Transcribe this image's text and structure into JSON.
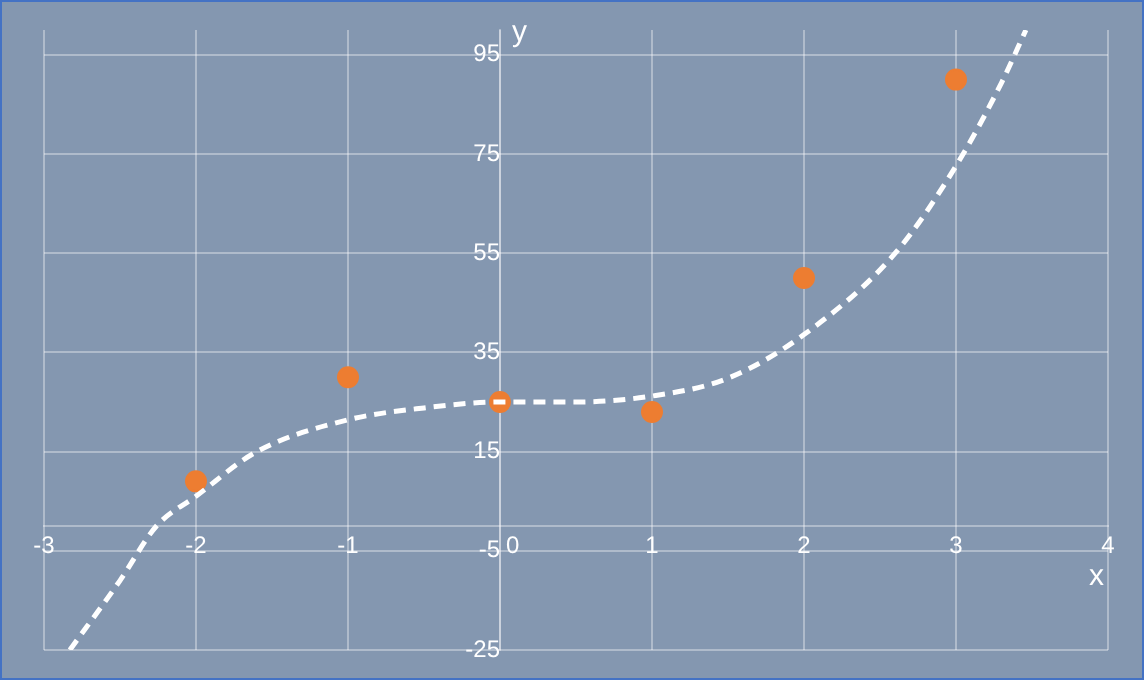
{
  "chart_data": {
    "type": "scatter",
    "xlabel": "x",
    "ylabel": "y",
    "xlim": [
      -3,
      4
    ],
    "xticks": [
      -3,
      -2,
      -1,
      0,
      1,
      2,
      3,
      4
    ],
    "ylim": [
      -25,
      100
    ],
    "yticks": [
      -25,
      -5,
      15,
      35,
      55,
      75,
      95
    ],
    "grid": true,
    "legend": false,
    "marker": "circle",
    "series": [
      {
        "color": "#ed7d31",
        "x": [
          -2,
          -1,
          0,
          1,
          2,
          3
        ],
        "values": [
          9,
          30,
          25,
          23,
          50,
          90
        ]
      },
      {
        "type": "line",
        "color": "#ffffff",
        "line_style": "dashed",
        "marker": "none",
        "x": [
          -2.83,
          -2.5,
          -2.26,
          -2,
          -1.6,
          -1,
          -0.5,
          0,
          0.5,
          1,
          1.5,
          2,
          2.6,
          3,
          3.3,
          3.46
        ],
        "values": [
          -25,
          -11,
          0,
          6,
          15,
          21.4,
          23.8,
          25,
          25,
          26.2,
          29.8,
          38.6,
          55,
          72.6,
          89.4,
          100
        ]
      }
    ]
  }
}
